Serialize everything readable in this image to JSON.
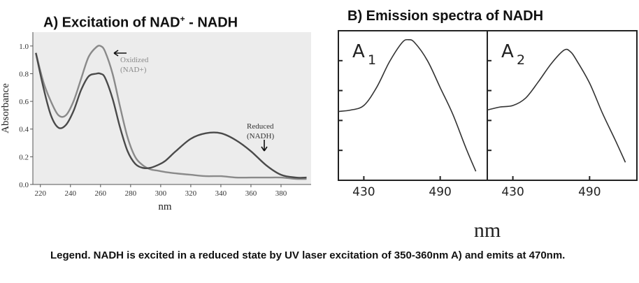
{
  "titles": {
    "panel_a_main": "A) Excitation of NAD",
    "panel_a_sup": "+",
    "panel_a_rest": " - NADH",
    "panel_b": "B) Emission spectra of NADH"
  },
  "legend_text": "Legend. NADH is excited in a reduced state by UV laser excitation of 350-360nm A) and emits at  470nm.",
  "colors": {
    "oxidized_curve": "#8a8a8a",
    "reduced_curve": "#4a4a4a",
    "panel_a_background": "#ececec",
    "panel_b_curve": "#333333"
  },
  "chart_data": [
    {
      "type": "line",
      "title": "A) Excitation of NAD+ - NADH",
      "xlabel": "nm",
      "ylabel": "Absorbance",
      "xlim": [
        215,
        400
      ],
      "ylim": [
        0.0,
        1.1
      ],
      "xticks": [
        "220",
        "240",
        "260",
        "280",
        "300",
        "320",
        "340",
        "360",
        "380"
      ],
      "xtick_values": [
        220,
        240,
        260,
        280,
        300,
        320,
        340,
        360,
        380
      ],
      "yticks": [
        "0.0",
        "0.2",
        "0.4",
        "0.6",
        "0.8",
        "1.0"
      ],
      "ytick_values": [
        0.0,
        0.2,
        0.4,
        0.6,
        0.8,
        1.0
      ],
      "series": [
        {
          "name": "Oxidized (NAD+)",
          "label_line1": "Oxidized",
          "label_line2": "(NAD+)",
          "x": [
            217,
            222,
            227,
            232,
            237,
            242,
            247,
            252,
            257,
            260,
            263,
            268,
            273,
            278,
            283,
            288,
            293,
            298,
            303,
            310,
            320,
            330,
            340,
            350,
            360,
            370,
            380,
            390,
            397
          ],
          "y": [
            0.95,
            0.74,
            0.6,
            0.5,
            0.5,
            0.6,
            0.76,
            0.92,
            0.99,
            1.0,
            0.96,
            0.8,
            0.56,
            0.34,
            0.2,
            0.14,
            0.11,
            0.1,
            0.09,
            0.08,
            0.07,
            0.06,
            0.06,
            0.05,
            0.05,
            0.05,
            0.05,
            0.04,
            0.04
          ]
        },
        {
          "name": "Reduced (NADH)",
          "label_line1": "Reduced",
          "label_line2": "(NADH)",
          "x": [
            217,
            222,
            227,
            232,
            237,
            242,
            247,
            252,
            257,
            260,
            263,
            268,
            273,
            278,
            283,
            288,
            293,
            298,
            303,
            310,
            320,
            330,
            340,
            350,
            360,
            370,
            380,
            390,
            397
          ],
          "y": [
            0.95,
            0.7,
            0.5,
            0.41,
            0.43,
            0.53,
            0.68,
            0.78,
            0.8,
            0.8,
            0.77,
            0.62,
            0.41,
            0.24,
            0.15,
            0.12,
            0.12,
            0.14,
            0.17,
            0.24,
            0.33,
            0.37,
            0.37,
            0.32,
            0.24,
            0.14,
            0.07,
            0.05,
            0.05
          ]
        }
      ]
    },
    {
      "type": "line",
      "title": "B) Emission spectra of NADH",
      "xlabel": "nm",
      "panels": [
        {
          "label": "A",
          "subscript": "1",
          "xticks": [
            "430",
            "490"
          ],
          "xtick_values": [
            430,
            490
          ],
          "xlim": [
            410,
            527
          ],
          "ylim": [
            0,
            1
          ],
          "x": [
            410,
            420,
            430,
            440,
            450,
            460,
            465,
            470,
            480,
            490,
            500,
            510,
            518
          ],
          "y": [
            0.46,
            0.47,
            0.5,
            0.62,
            0.79,
            0.92,
            0.94,
            0.92,
            0.8,
            0.62,
            0.44,
            0.22,
            0.06
          ]
        },
        {
          "label": "A",
          "subscript": "2",
          "xticks": [
            "430",
            "490"
          ],
          "xtick_values": [
            430,
            490
          ],
          "xlim": [
            410,
            527
          ],
          "ylim": [
            0,
            1
          ],
          "x": [
            410,
            420,
            430,
            440,
            450,
            460,
            470,
            475,
            480,
            490,
            500,
            510,
            518
          ],
          "y": [
            0.47,
            0.49,
            0.5,
            0.55,
            0.66,
            0.78,
            0.87,
            0.86,
            0.8,
            0.65,
            0.45,
            0.27,
            0.12
          ]
        }
      ]
    }
  ]
}
